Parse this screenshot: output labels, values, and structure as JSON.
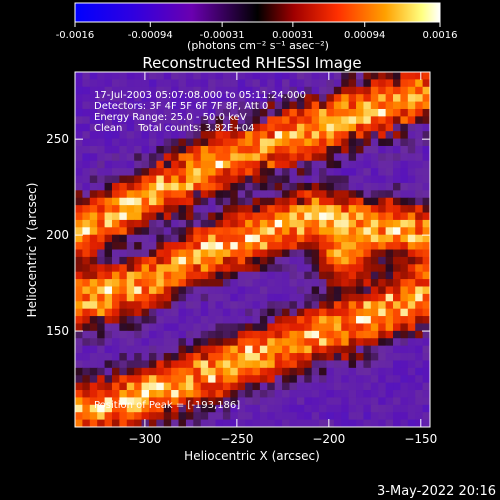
{
  "colorbar": {
    "tick_labels": [
      "-0.0016",
      "-0.00094",
      "-0.00031",
      "0.00031",
      "0.00094",
      "0.0016"
    ],
    "tick_values": [
      -0.0016,
      -0.00094,
      -0.00031,
      0.00031,
      0.00094,
      0.0016
    ],
    "range": [
      -0.0016,
      0.0016
    ],
    "unit_label": "(photons cm⁻² s⁻¹ asec⁻²)",
    "colors": [
      "#0000ff",
      "#5a00c8",
      "#000000",
      "#a00000",
      "#ff4000",
      "#ffa000",
      "#ffff90",
      "#ffffff"
    ]
  },
  "chart_data": {
    "type": "heatmap",
    "title": "Reconstructed RHESSI Image",
    "xlabel": "Heliocentric X (arcsec)",
    "ylabel": "Heliocentric Y (arcsec)",
    "xlim": [
      -338,
      -145
    ],
    "ylim": [
      100,
      285
    ],
    "x_ticks": [
      -300,
      -250,
      -200,
      -150
    ],
    "x_tick_labels": [
      "−300",
      "−250",
      "−200",
      "−150"
    ],
    "y_ticks": [
      150,
      200,
      250
    ],
    "y_tick_labels": [
      "150",
      "200",
      "250"
    ],
    "annotations": [
      "17-Jul-2003 05:07:08.000 to 05:11:24.000",
      "Detectors: 3F 4F 5F 6F 7F 8F, Att 0",
      "Energy Range: 25.0 - 50.0 keV",
      "Clean     Total counts: 3.82E+04"
    ],
    "peak_label": "Position of Peak = [-193,186]",
    "peak_position": [
      -193,
      186
    ],
    "bright_bands": [
      {
        "x": [
          -338,
          -300,
          -270,
          -240,
          -210,
          -180,
          -145
        ],
        "y": [
          200,
          220,
          235,
          245,
          255,
          265,
          275
        ]
      },
      {
        "x": [
          -338,
          -300,
          -270,
          -240,
          -210,
          -180,
          -145
        ],
        "y": [
          165,
          175,
          190,
          200,
          210,
          205,
          200
        ]
      },
      {
        "x": [
          -320,
          -290,
          -260,
          -230,
          -200,
          -170,
          -145
        ],
        "y": [
          110,
          120,
          130,
          140,
          150,
          160,
          170
        ]
      }
    ]
  },
  "timestamp": "3-May-2022 20:16"
}
